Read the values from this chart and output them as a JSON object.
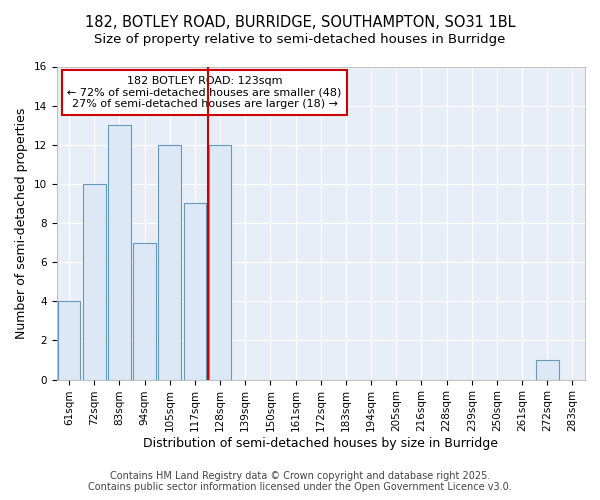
{
  "title_line1": "182, BOTLEY ROAD, BURRIDGE, SOUTHAMPTON, SO31 1BL",
  "title_line2": "Size of property relative to semi-detached houses in Burridge",
  "xlabel": "Distribution of semi-detached houses by size in Burridge",
  "ylabel": "Number of semi-detached properties",
  "categories": [
    "61sqm",
    "72sqm",
    "83sqm",
    "94sqm",
    "105sqm",
    "117sqm",
    "128sqm",
    "139sqm",
    "150sqm",
    "161sqm",
    "172sqm",
    "183sqm",
    "194sqm",
    "205sqm",
    "216sqm",
    "228sqm",
    "239sqm",
    "250sqm",
    "261sqm",
    "272sqm",
    "283sqm"
  ],
  "values": [
    4,
    10,
    13,
    7,
    12,
    9,
    12,
    0,
    0,
    0,
    0,
    0,
    0,
    0,
    0,
    0,
    0,
    0,
    0,
    1,
    0
  ],
  "bar_color": "#dce8f5",
  "bar_edge_color": "#6699bb",
  "vline_x": 6.0,
  "vline_color": "#cc0000",
  "annotation_line1": "182 BOTLEY ROAD: 123sqm",
  "annotation_line2": "← 72% of semi-detached houses are smaller (48)",
  "annotation_line3": "27% of semi-detached houses are larger (18) →",
  "annotation_box_facecolor": "#ffffff",
  "annotation_box_edgecolor": "#cc0000",
  "ylim": [
    0,
    16
  ],
  "yticks": [
    0,
    2,
    4,
    6,
    8,
    10,
    12,
    14,
    16
  ],
  "footer_line1": "Contains HM Land Registry data © Crown copyright and database right 2025.",
  "footer_line2": "Contains public sector information licensed under the Open Government Licence v3.0.",
  "bg_color": "#ffffff",
  "plot_bg_color": "#e8eef8",
  "grid_color": "#ffffff",
  "title_fontsize": 10.5,
  "subtitle_fontsize": 9.5,
  "axis_label_fontsize": 9,
  "tick_fontsize": 7.5,
  "annotation_fontsize": 8,
  "footer_fontsize": 7
}
